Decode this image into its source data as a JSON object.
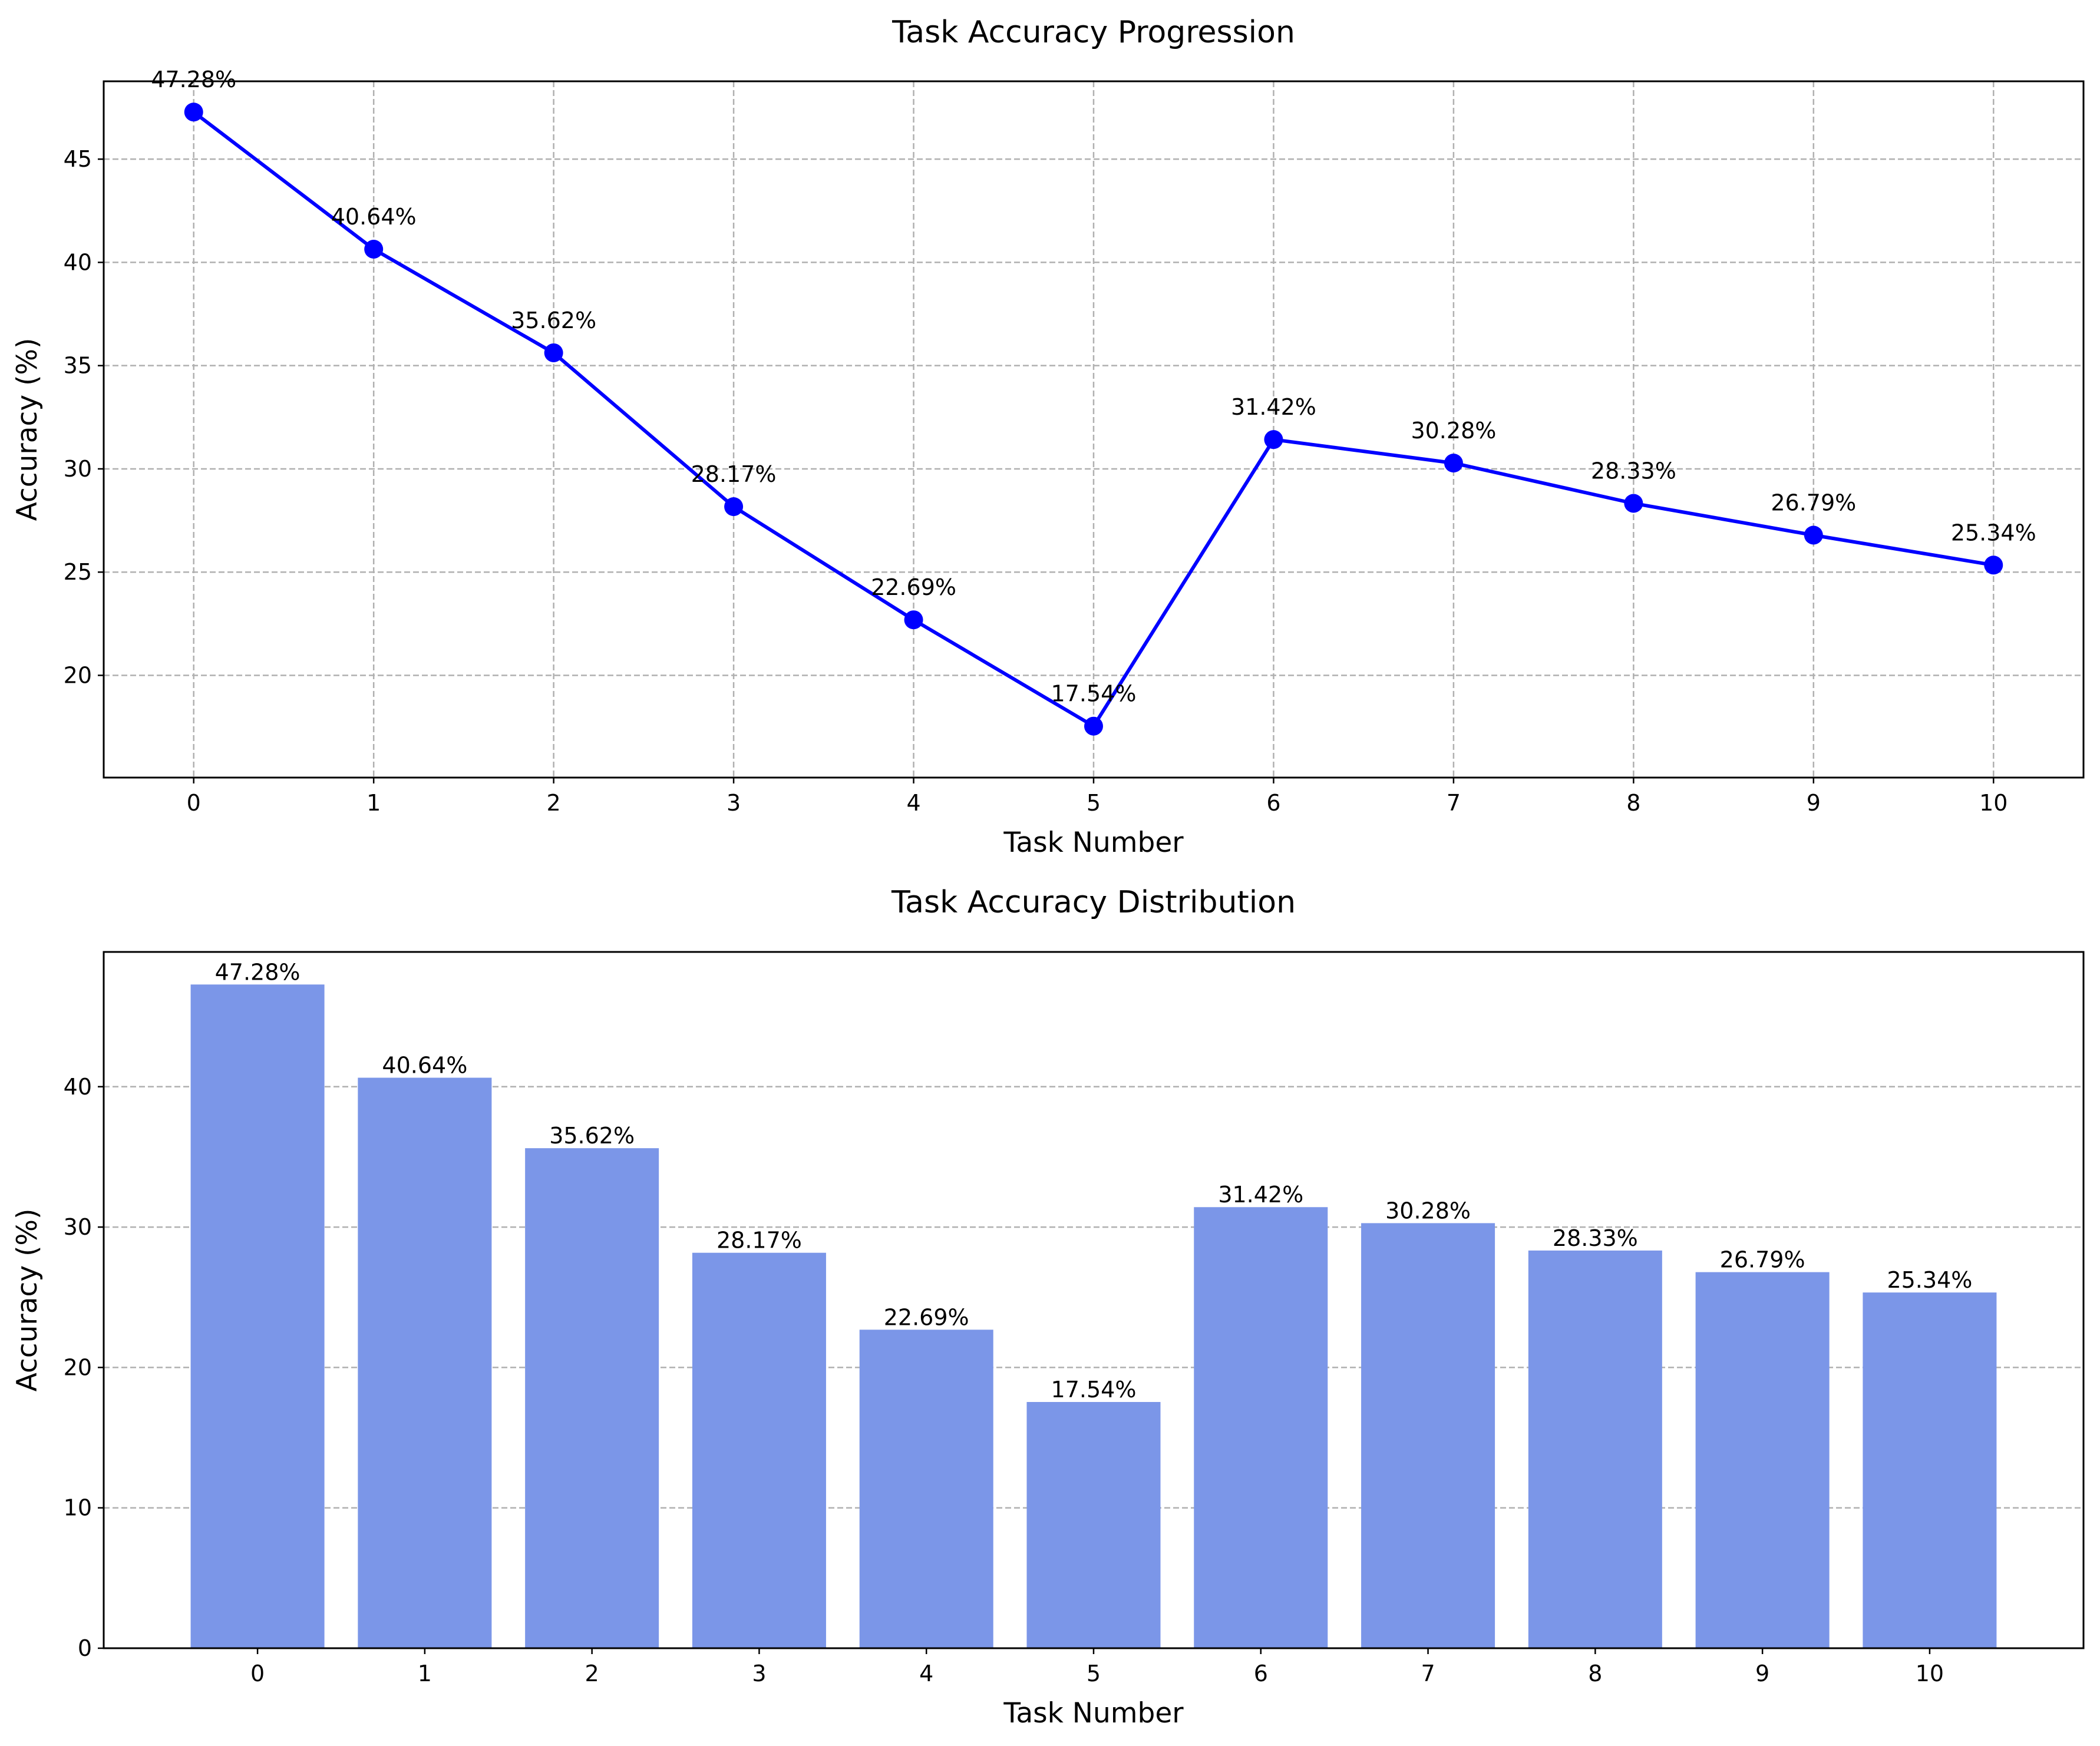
{
  "chart_data": [
    {
      "type": "line",
      "title": "Task Accuracy Progression",
      "xlabel": "Task Number",
      "ylabel": "Accuracy (%)",
      "x": [
        0,
        1,
        2,
        3,
        4,
        5,
        6,
        7,
        8,
        9,
        10
      ],
      "values": [
        47.28,
        40.64,
        35.62,
        28.17,
        22.69,
        17.54,
        31.42,
        30.28,
        28.33,
        26.79,
        25.34
      ],
      "labels": [
        "47.28%",
        "40.64%",
        "35.62%",
        "28.17%",
        "22.69%",
        "17.54%",
        "31.42%",
        "30.28%",
        "28.33%",
        "26.79%",
        "25.34%"
      ],
      "xticks": [
        "0",
        "1",
        "2",
        "3",
        "4",
        "5",
        "6",
        "7",
        "8",
        "9",
        "10"
      ],
      "yticks": [
        "20",
        "25",
        "30",
        "35",
        "40",
        "45"
      ],
      "xlim": [
        -0.5,
        10.5
      ],
      "ylim": [
        15.05,
        48.77
      ],
      "grid": "both",
      "color": "#0000ff"
    },
    {
      "type": "bar",
      "title": "Task Accuracy Distribution",
      "xlabel": "Task Number",
      "ylabel": "Accuracy (%)",
      "categories": [
        "0",
        "1",
        "2",
        "3",
        "4",
        "5",
        "6",
        "7",
        "8",
        "9",
        "10"
      ],
      "values": [
        47.28,
        40.64,
        35.62,
        28.17,
        22.69,
        17.54,
        31.42,
        30.28,
        28.33,
        26.79,
        25.34
      ],
      "labels": [
        "47.28%",
        "40.64%",
        "35.62%",
        "28.17%",
        "22.69%",
        "17.54%",
        "31.42%",
        "30.28%",
        "28.33%",
        "26.79%",
        "25.34%"
      ],
      "yticks": [
        "0",
        "10",
        "20",
        "30",
        "40"
      ],
      "xlim": [
        -0.92,
        10.92
      ],
      "ylim": [
        0,
        49.6
      ],
      "grid": "y",
      "color": "#7b96e8"
    }
  ]
}
